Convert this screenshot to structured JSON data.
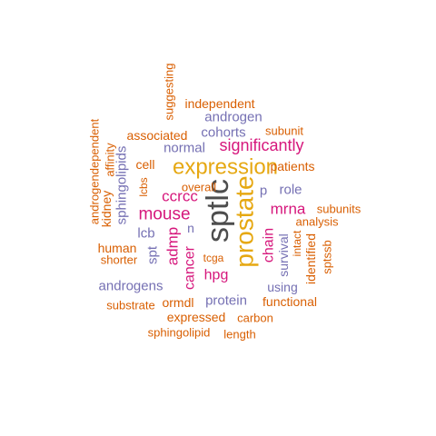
{
  "colors": {
    "dark": "#4d4d4d",
    "gold": "#e6a812",
    "magenta": "#d6177c",
    "purple": "#7570b3",
    "orange": "#d95f02"
  },
  "words": [
    {
      "text": "sptlc",
      "color": "dark",
      "weight": 1.0
    },
    {
      "text": "prostate",
      "color": "gold",
      "weight": 0.9
    },
    {
      "text": "expression",
      "color": "gold",
      "weight": 0.8
    },
    {
      "text": "mouse",
      "color": "magenta",
      "weight": 0.6
    },
    {
      "text": "significantly",
      "color": "magenta",
      "weight": 0.6
    },
    {
      "text": "ccrcc",
      "color": "magenta",
      "weight": 0.55
    },
    {
      "text": "admp",
      "color": "magenta",
      "weight": 0.55
    },
    {
      "text": "cancer",
      "color": "magenta",
      "weight": 0.55
    },
    {
      "text": "mrna",
      "color": "magenta",
      "weight": 0.55
    },
    {
      "text": "chain",
      "color": "magenta",
      "weight": 0.5
    },
    {
      "text": "hpg",
      "color": "magenta",
      "weight": 0.5
    },
    {
      "text": "protein",
      "color": "purple",
      "weight": 0.4
    },
    {
      "text": "androgens",
      "color": "purple",
      "weight": 0.4
    },
    {
      "text": "sphingolipids",
      "color": "purple",
      "weight": 0.4
    },
    {
      "text": "cohorts",
      "color": "purple",
      "weight": 0.4
    },
    {
      "text": "androgen",
      "color": "purple",
      "weight": 0.4
    },
    {
      "text": "normal",
      "color": "purple",
      "weight": 0.4
    },
    {
      "text": "role",
      "color": "purple",
      "weight": 0.4
    },
    {
      "text": "p",
      "color": "purple",
      "weight": 0.4
    },
    {
      "text": "lcb",
      "color": "purple",
      "weight": 0.4
    },
    {
      "text": "spt",
      "color": "purple",
      "weight": 0.4
    },
    {
      "text": "survival",
      "color": "purple",
      "weight": 0.4
    },
    {
      "text": "using",
      "color": "purple",
      "weight": 0.4
    },
    {
      "text": "n",
      "color": "purple",
      "weight": 0.4
    },
    {
      "text": "independent",
      "color": "orange",
      "weight": 0.3
    },
    {
      "text": "associated",
      "color": "orange",
      "weight": 0.3
    },
    {
      "text": "patients",
      "color": "orange",
      "weight": 0.3
    },
    {
      "text": "functional",
      "color": "orange",
      "weight": 0.3
    },
    {
      "text": "expressed",
      "color": "orange",
      "weight": 0.3
    },
    {
      "text": "cell",
      "color": "orange",
      "weight": 0.3
    },
    {
      "text": "kidney",
      "color": "orange",
      "weight": 0.3
    },
    {
      "text": "human",
      "color": "orange",
      "weight": 0.3
    },
    {
      "text": "identified",
      "color": "orange",
      "weight": 0.3
    },
    {
      "text": "subunits",
      "color": "orange",
      "weight": 0.25
    },
    {
      "text": "analysis",
      "color": "orange",
      "weight": 0.25
    },
    {
      "text": "overall",
      "color": "orange",
      "weight": 0.25
    },
    {
      "text": "sptssb",
      "color": "orange",
      "weight": 0.25
    },
    {
      "text": "androgendependent",
      "color": "orange",
      "weight": 0.25
    },
    {
      "text": "affinity",
      "color": "orange",
      "weight": 0.25
    },
    {
      "text": "suggesting",
      "color": "orange",
      "weight": 0.25
    },
    {
      "text": "subunit",
      "color": "orange",
      "weight": 0.25
    },
    {
      "text": "lcbs",
      "color": "orange",
      "weight": 0.25
    },
    {
      "text": "tcga",
      "color": "orange",
      "weight": 0.25
    },
    {
      "text": "intact",
      "color": "orange",
      "weight": 0.25
    },
    {
      "text": "shorter",
      "color": "orange",
      "weight": 0.25
    },
    {
      "text": "substrate",
      "color": "orange",
      "weight": 0.25
    },
    {
      "text": "ormdl",
      "color": "orange",
      "weight": 0.25
    },
    {
      "text": "carbon",
      "color": "orange",
      "weight": 0.25
    },
    {
      "text": "sphingolipid",
      "color": "orange",
      "weight": 0.25
    },
    {
      "text": "length",
      "color": "orange",
      "weight": 0.25
    }
  ]
}
